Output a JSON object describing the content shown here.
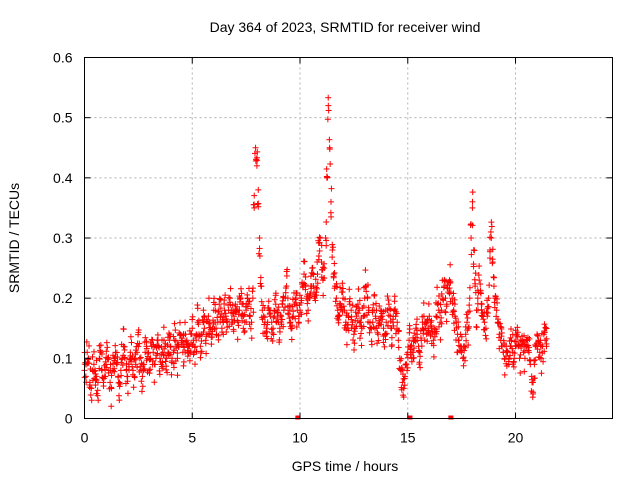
{
  "chart_data": {
    "type": "scatter",
    "title": "Day 364 of 2023, SRMTID for receiver wind",
    "xlabel": "GPS time / hours",
    "ylabel": "SRMTID / TECUs",
    "xlim": [
      0,
      24.5
    ],
    "ylim": [
      0,
      0.6
    ],
    "xticks": [
      0,
      5,
      10,
      15,
      20
    ],
    "xtick_labels": [
      "0",
      "5",
      "10",
      "15",
      "20"
    ],
    "yticks": [
      0,
      0.1,
      0.2,
      0.3,
      0.4,
      0.5,
      0.6
    ],
    "ytick_labels": [
      "0",
      "0.1",
      "0.2",
      "0.3",
      "0.4",
      "0.5",
      "0.6"
    ],
    "grid": true,
    "marker": "plus",
    "color": "#ff0000",
    "series": [
      {
        "name": "SRMTID",
        "x_start": 0.0,
        "x_step": 0.0625,
        "values": [
          0.08,
          0.07,
          0.11,
          0.1,
          0.06,
          0.05,
          0.08,
          0.09,
          0.08,
          0.07,
          0.06,
          0.1,
          0.11,
          0.08,
          0.06,
          0.07,
          0.09,
          0.1,
          0.08,
          0.06,
          0.05,
          0.08,
          0.1,
          0.11,
          0.09,
          0.07,
          0.06,
          0.08,
          0.1,
          0.12,
          0.1,
          0.08,
          0.07,
          0.09,
          0.11,
          0.1,
          0.08,
          0.07,
          0.09,
          0.11,
          0.12,
          0.1,
          0.08,
          0.07,
          0.09,
          0.11,
          0.12,
          0.1,
          0.08,
          0.1,
          0.12,
          0.11,
          0.09,
          0.1,
          0.13,
          0.12,
          0.1,
          0.09,
          0.11,
          0.13,
          0.12,
          0.1,
          0.11,
          0.13,
          0.12,
          0.1,
          0.11,
          0.13,
          0.12,
          0.1,
          0.12,
          0.14,
          0.13,
          0.11,
          0.12,
          0.14,
          0.13,
          0.11,
          0.12,
          0.14,
          0.15,
          0.13,
          0.12,
          0.14,
          0.16,
          0.14,
          0.12,
          0.14,
          0.16,
          0.15,
          0.13,
          0.14,
          0.17,
          0.16,
          0.14,
          0.15,
          0.18,
          0.16,
          0.14,
          0.16,
          0.19,
          0.17,
          0.15,
          0.16,
          0.18,
          0.17,
          0.16,
          0.18,
          0.2,
          0.18,
          0.16,
          0.17,
          0.19,
          0.18,
          0.16,
          0.18,
          0.2,
          0.19,
          0.17,
          0.16,
          0.18,
          0.2,
          0.19,
          0.17,
          0.16,
          0.2,
          0.35,
          0.45,
          0.42,
          0.38,
          0.3,
          0.22,
          0.18,
          0.17,
          0.16,
          0.15,
          0.16,
          0.18,
          0.17,
          0.16,
          0.15,
          0.17,
          0.19,
          0.18,
          0.16,
          0.15,
          0.17,
          0.19,
          0.18,
          0.2,
          0.22,
          0.2,
          0.18,
          0.16,
          0.15,
          0.17,
          0.19,
          0.2,
          0.18,
          0.16,
          0.18,
          0.2,
          0.22,
          0.24,
          0.22,
          0.2,
          0.18,
          0.2,
          0.22,
          0.25,
          0.22,
          0.2,
          0.21,
          0.24,
          0.27,
          0.3,
          0.26,
          0.23,
          0.25,
          0.3,
          0.4,
          0.52,
          0.45,
          0.36,
          0.28,
          0.24,
          0.22,
          0.2,
          0.18,
          0.17,
          0.19,
          0.21,
          0.2,
          0.18,
          0.16,
          0.15,
          0.17,
          0.19,
          0.18,
          0.16,
          0.14,
          0.15,
          0.17,
          0.19,
          0.18,
          0.16,
          0.15,
          0.17,
          0.2,
          0.22,
          0.2,
          0.18,
          0.16,
          0.15,
          0.16,
          0.18,
          0.17,
          0.15,
          0.14,
          0.16,
          0.18,
          0.17,
          0.15,
          0.14,
          0.16,
          0.18,
          0.19,
          0.17,
          0.15,
          0.16,
          0.18,
          0.17,
          0.15,
          0.13,
          0.1,
          0.08,
          0.06,
          0.05,
          0.07,
          0.09,
          0.11,
          0.13,
          0.12,
          0.1,
          0.11,
          0.13,
          0.15,
          0.14,
          0.12,
          0.11,
          0.13,
          0.15,
          0.17,
          0.16,
          0.14,
          0.15,
          0.17,
          0.16,
          0.14,
          0.13,
          0.15,
          0.17,
          0.19,
          0.18,
          0.16,
          0.18,
          0.2,
          0.22,
          0.2,
          0.19,
          0.21,
          0.23,
          0.21,
          0.2,
          0.18,
          0.17,
          0.16,
          0.14,
          0.13,
          0.12,
          0.11,
          0.1,
          0.12,
          0.14,
          0.16,
          0.15,
          0.2,
          0.3,
          0.35,
          0.28,
          0.22,
          0.18,
          0.2,
          0.23,
          0.21,
          0.19,
          0.17,
          0.16,
          0.15,
          0.17,
          0.2,
          0.28,
          0.3,
          0.26,
          0.22,
          0.2,
          0.18,
          0.16,
          0.14,
          0.13,
          0.12,
          0.11,
          0.1,
          0.12,
          0.11,
          0.1,
          0.12,
          0.13,
          0.11,
          0.1,
          0.12,
          0.14,
          0.12,
          0.1,
          0.12,
          0.13,
          0.11,
          0.1,
          0.12,
          0.13,
          0.11,
          0.09,
          0.07,
          0.06,
          0.09,
          0.12,
          0.14,
          0.13,
          0.11,
          0.1,
          0.12,
          0.14,
          0.13,
          0.12
        ]
      }
    ],
    "zero_markers_x": [
      9.9,
      15.1,
      17.0
    ]
  }
}
